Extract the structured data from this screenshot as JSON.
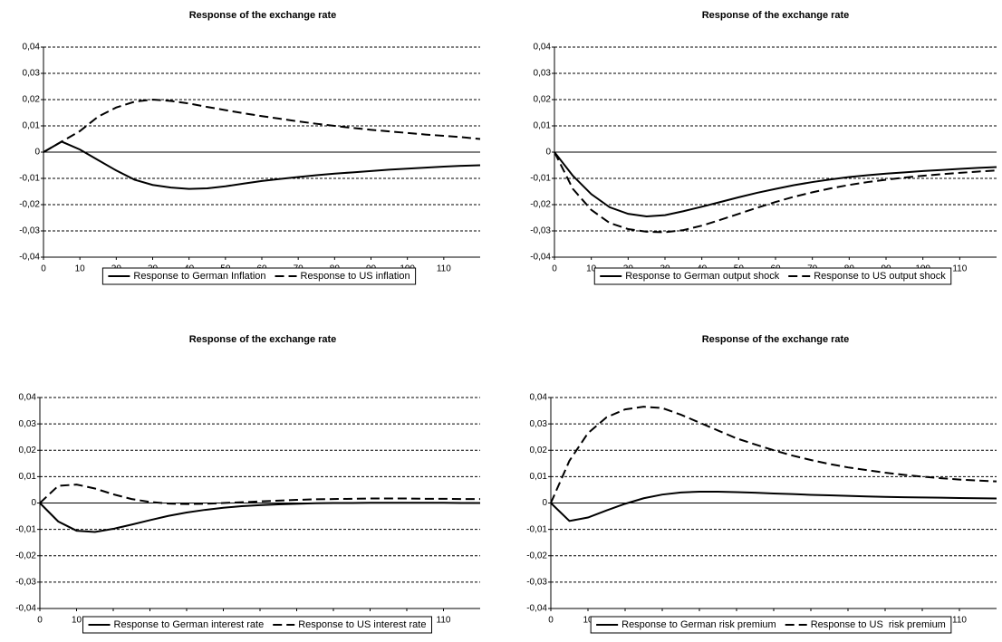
{
  "chart_data": [
    {
      "type": "line",
      "title": "Response of the exchange rate",
      "x": [
        0,
        5,
        10,
        15,
        20,
        25,
        30,
        35,
        40,
        45,
        50,
        55,
        60,
        65,
        70,
        75,
        80,
        85,
        90,
        95,
        100,
        105,
        110,
        115,
        120
      ],
      "series": [
        {
          "name": "Response to German Inflation",
          "color": "#000000",
          "line_style": "solid",
          "values": [
            0,
            0.004,
            0.001,
            -0.003,
            -0.007,
            -0.0105,
            -0.0125,
            -0.0135,
            -0.014,
            -0.0138,
            -0.013,
            -0.012,
            -0.011,
            -0.0102,
            -0.0095,
            -0.0088,
            -0.0082,
            -0.0077,
            -0.0072,
            -0.0067,
            -0.0063,
            -0.0059,
            -0.0055,
            -0.0052,
            -0.005
          ]
        },
        {
          "name": "Response to US inflation",
          "color": "#000000",
          "line_style": "dashed",
          "values": [
            0,
            0.004,
            0.008,
            0.0135,
            0.017,
            0.0192,
            0.02,
            0.0195,
            0.0185,
            0.0172,
            0.016,
            0.0148,
            0.0137,
            0.0127,
            0.0117,
            0.0108,
            0.01,
            0.0092,
            0.0085,
            0.0079,
            0.0073,
            0.0067,
            0.0062,
            0.0057,
            0.005
          ]
        }
      ],
      "xlim": [
        0,
        120
      ],
      "xticks": [
        0,
        10,
        20,
        30,
        40,
        50,
        60,
        70,
        80,
        90,
        100,
        110
      ],
      "ylim": [
        -0.04,
        0.04
      ],
      "yticks": [
        {
          "value": -0.04,
          "label": "-0,04"
        },
        {
          "value": -0.03,
          "label": "-0,03"
        },
        {
          "value": -0.02,
          "label": "-0,02"
        },
        {
          "value": -0.01,
          "label": "-0,01"
        },
        0,
        {
          "value": 0.01,
          "label": "0,01"
        },
        {
          "value": 0.02,
          "label": "0,02"
        },
        {
          "value": 0.03,
          "label": "0,03"
        },
        {
          "value": 0.04,
          "label": "0,04"
        }
      ],
      "grid": true,
      "legend": "bottom"
    },
    {
      "type": "line",
      "title": "Response of the exchange rate",
      "x": [
        0,
        5,
        10,
        15,
        20,
        25,
        30,
        35,
        40,
        45,
        50,
        55,
        60,
        65,
        70,
        75,
        80,
        85,
        90,
        95,
        100,
        105,
        110,
        115,
        120
      ],
      "series": [
        {
          "name": "Response to German output shock",
          "color": "#000000",
          "line_style": "solid",
          "values": [
            0,
            -0.009,
            -0.016,
            -0.021,
            -0.0235,
            -0.0245,
            -0.024,
            -0.0225,
            -0.0208,
            -0.019,
            -0.0172,
            -0.0155,
            -0.014,
            -0.0126,
            -0.0114,
            -0.0104,
            -0.0095,
            -0.0088,
            -0.0082,
            -0.0077,
            -0.0072,
            -0.0068,
            -0.0064,
            -0.006,
            -0.0057
          ]
        },
        {
          "name": "Response to US output shock",
          "color": "#000000",
          "line_style": "dashed",
          "values": [
            0,
            -0.014,
            -0.022,
            -0.027,
            -0.0293,
            -0.0303,
            -0.0305,
            -0.0297,
            -0.028,
            -0.0258,
            -0.0235,
            -0.0212,
            -0.019,
            -0.017,
            -0.0153,
            -0.0138,
            -0.0125,
            -0.0114,
            -0.0105,
            -0.0097,
            -0.009,
            -0.0084,
            -0.0079,
            -0.0074,
            -0.007
          ]
        }
      ],
      "xlim": [
        0,
        120
      ],
      "xticks": [
        0,
        10,
        20,
        30,
        40,
        50,
        60,
        70,
        80,
        90,
        100,
        110
      ],
      "ylim": [
        -0.04,
        0.04
      ],
      "yticks": [
        {
          "value": -0.04,
          "label": "-0,04"
        },
        {
          "value": -0.03,
          "label": "-0,03"
        },
        {
          "value": -0.02,
          "label": "-0,02"
        },
        {
          "value": -0.01,
          "label": "-0,01"
        },
        0,
        {
          "value": 0.01,
          "label": "0,01"
        },
        {
          "value": 0.02,
          "label": "0,02"
        },
        {
          "value": 0.03,
          "label": "0,03"
        },
        {
          "value": 0.04,
          "label": "0,04"
        }
      ],
      "grid": true,
      "legend": "bottom"
    },
    {
      "type": "line",
      "title": "Response of the exchange rate",
      "x": [
        0,
        5,
        10,
        15,
        20,
        25,
        30,
        35,
        40,
        45,
        50,
        55,
        60,
        65,
        70,
        75,
        80,
        85,
        90,
        95,
        100,
        105,
        110,
        115,
        120
      ],
      "series": [
        {
          "name": "Response to German interest rate",
          "color": "#000000",
          "line_style": "solid",
          "values": [
            0,
            -0.007,
            -0.0105,
            -0.011,
            -0.0098,
            -0.0082,
            -0.0065,
            -0.0049,
            -0.0036,
            -0.0026,
            -0.0018,
            -0.0012,
            -0.0008,
            -0.0005,
            -0.0003,
            -0.0001,
            0,
            0,
            0.0001,
            0.0001,
            0.0001,
            0.0001,
            0.0001,
            0,
            0
          ]
        },
        {
          "name": "Response to US interest rate",
          "color": "#000000",
          "line_style": "dashed",
          "values": [
            0,
            0.0065,
            0.007,
            0.0055,
            0.0033,
            0.0015,
            0.0004,
            -0.0002,
            -0.0004,
            -0.0003,
            0,
            0.0003,
            0.0006,
            0.0009,
            0.0012,
            0.0014,
            0.0015,
            0.0016,
            0.0017,
            0.0017,
            0.0017,
            0.0016,
            0.0016,
            0.0015,
            0.0015
          ]
        }
      ],
      "xlim": [
        0,
        120
      ],
      "xticks": [
        0,
        10,
        20,
        30,
        40,
        50,
        60,
        70,
        80,
        90,
        100,
        110
      ],
      "ylim": [
        -0.04,
        0.04
      ],
      "yticks": [
        {
          "value": -0.04,
          "label": "-0,04"
        },
        {
          "value": -0.03,
          "label": "-0,03"
        },
        {
          "value": -0.02,
          "label": "-0,02"
        },
        {
          "value": -0.01,
          "label": "-0,01"
        },
        0,
        {
          "value": 0.01,
          "label": "0,01"
        },
        {
          "value": 0.02,
          "label": "0,02"
        },
        {
          "value": 0.03,
          "label": "0,03"
        },
        {
          "value": 0.04,
          "label": "0,04"
        }
      ],
      "grid": true,
      "legend": "bottom"
    },
    {
      "type": "line",
      "title": "Response of the exchange rate",
      "x": [
        0,
        5,
        10,
        15,
        20,
        25,
        30,
        35,
        40,
        45,
        50,
        55,
        60,
        65,
        70,
        75,
        80,
        85,
        90,
        95,
        100,
        105,
        110,
        115,
        120
      ],
      "series": [
        {
          "name": "Response to German risk premium",
          "color": "#000000",
          "line_style": "solid",
          "values": [
            0,
            -0.0068,
            -0.0055,
            -0.0028,
            -0.0003,
            0.0018,
            0.0032,
            0.004,
            0.0043,
            0.0043,
            0.0041,
            0.0039,
            0.0036,
            0.0034,
            0.0031,
            0.0029,
            0.0027,
            0.0025,
            0.0023,
            0.0022,
            0.0021,
            0.002,
            0.0019,
            0.0018,
            0.0017
          ]
        },
        {
          "name": "Response to US  risk premium",
          "color": "#000000",
          "line_style": "dashed",
          "values": [
            0,
            0.016,
            0.0265,
            0.0325,
            0.0355,
            0.0365,
            0.036,
            0.0335,
            0.0305,
            0.0275,
            0.0245,
            0.0222,
            0.02,
            0.018,
            0.0163,
            0.0148,
            0.0135,
            0.0125,
            0.0115,
            0.0107,
            0.01,
            0.0094,
            0.0089,
            0.0085,
            0.0082
          ]
        }
      ],
      "xlim": [
        0,
        120
      ],
      "xticks": [
        0,
        10,
        20,
        30,
        40,
        50,
        60,
        70,
        80,
        90,
        100,
        110
      ],
      "ylim": [
        -0.04,
        0.04
      ],
      "yticks": [
        {
          "value": -0.04,
          "label": "-0,04"
        },
        {
          "value": -0.03,
          "label": "-0,03"
        },
        {
          "value": -0.02,
          "label": "-0,02"
        },
        {
          "value": -0.01,
          "label": "-0,01"
        },
        0,
        {
          "value": 0.01,
          "label": "0,01"
        },
        {
          "value": 0.02,
          "label": "0,02"
        },
        {
          "value": 0.03,
          "label": "0,03"
        },
        {
          "value": 0.04,
          "label": "0,04"
        }
      ],
      "grid": true,
      "legend": "bottom"
    }
  ]
}
